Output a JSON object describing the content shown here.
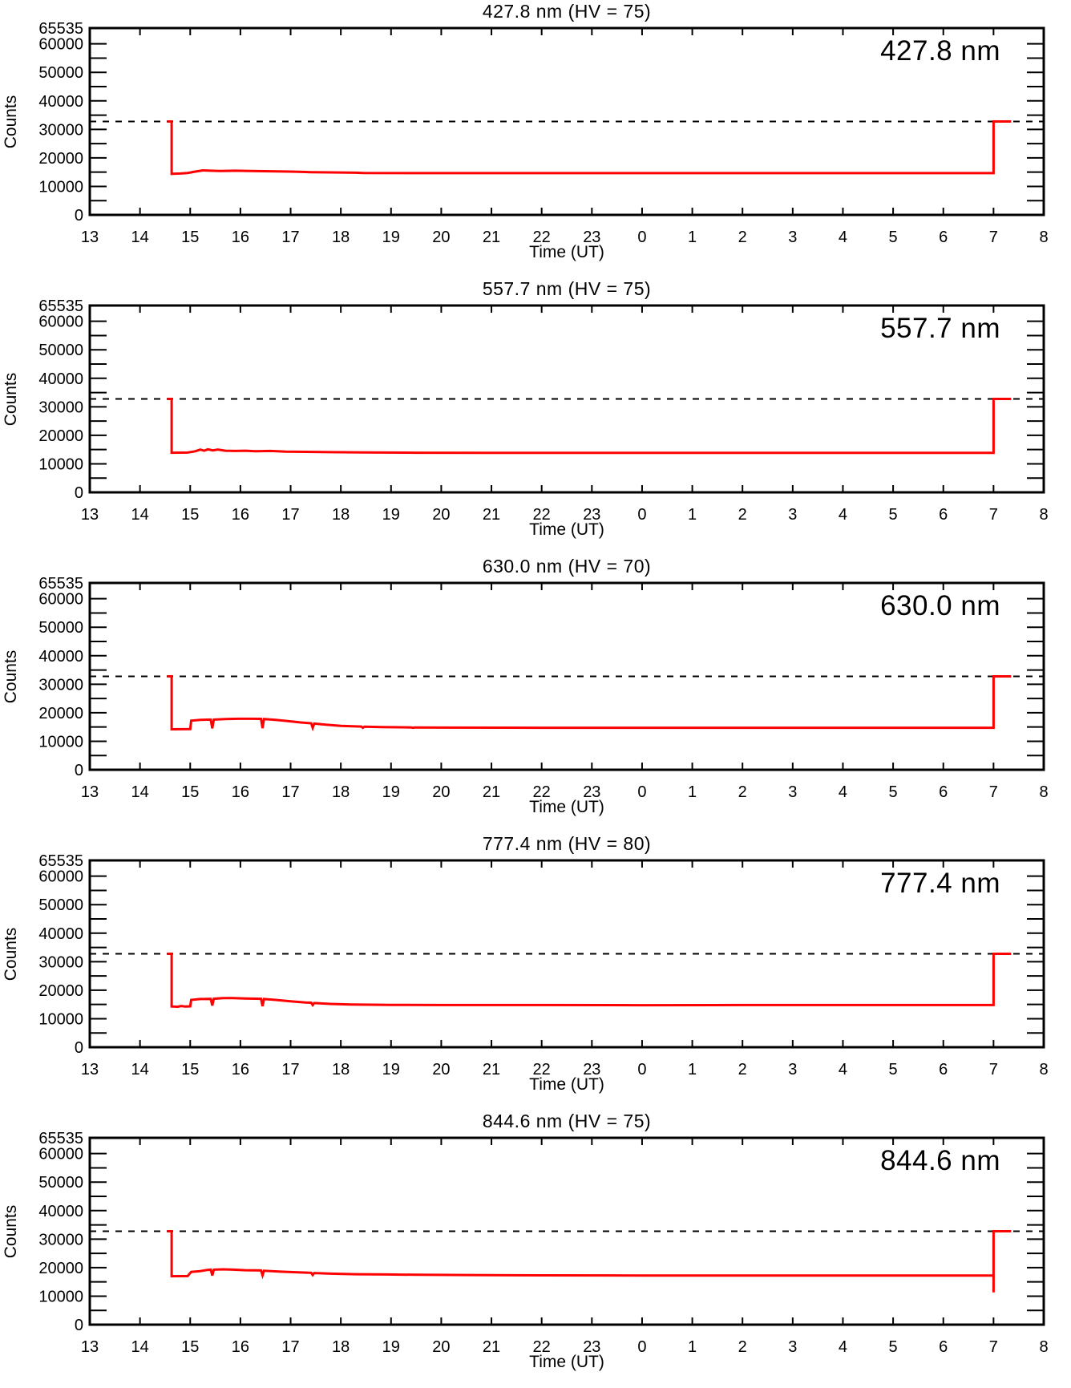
{
  "page_background": "#ffffff",
  "axis_color": "#000000",
  "chart_data": [
    {
      "type": "line",
      "title": "427.8 nm (HV = 75)",
      "big_label": "427.8 nm",
      "xlabel": "Time (UT)",
      "ylabel": "Counts",
      "line_color": "#ff0000",
      "dashed_reference_level": 32768,
      "ylim": [
        0,
        65535
      ],
      "ytick_values": [
        0,
        10000,
        20000,
        30000,
        40000,
        50000,
        60000,
        65535
      ],
      "ytick_labels": [
        "0",
        "10000",
        "20000",
        "30000",
        "40000",
        "50000",
        "60000",
        "65535"
      ],
      "y_minor_step": 5000,
      "xtick_labels": [
        "13",
        "14",
        "15",
        "16",
        "17",
        "18",
        "19",
        "20",
        "21",
        "22",
        "23",
        "0",
        "1",
        "2",
        "3",
        "4",
        "5",
        "6",
        "7",
        "8"
      ],
      "x_hours_span": 19,
      "grid": false,
      "points_hours_after_13UT_vs_counts": [
        [
          1.54,
          32768
        ],
        [
          1.63,
          32768
        ],
        [
          1.63,
          14400
        ],
        [
          1.8,
          14500
        ],
        [
          1.95,
          14700
        ],
        [
          2.1,
          15200
        ],
        [
          2.25,
          15600
        ],
        [
          2.4,
          15500
        ],
        [
          2.6,
          15400
        ],
        [
          2.9,
          15500
        ],
        [
          3.2,
          15400
        ],
        [
          3.6,
          15300
        ],
        [
          4.0,
          15200
        ],
        [
          4.4,
          15000
        ],
        [
          4.8,
          14900
        ],
        [
          5.3,
          14800
        ],
        [
          5.45,
          14700
        ],
        [
          6.5,
          14650
        ],
        [
          8,
          14650
        ],
        [
          10,
          14650
        ],
        [
          12,
          14650
        ],
        [
          14,
          14650
        ],
        [
          16,
          14650
        ],
        [
          18,
          14650
        ],
        [
          18,
          32768
        ],
        [
          18.35,
          32768
        ]
      ]
    },
    {
      "type": "line",
      "title": "557.7 nm (HV = 75)",
      "big_label": "557.7 nm",
      "xlabel": "Time (UT)",
      "ylabel": "Counts",
      "line_color": "#ff0000",
      "dashed_reference_level": 32768,
      "ylim": [
        0,
        65535
      ],
      "ytick_values": [
        0,
        10000,
        20000,
        30000,
        40000,
        50000,
        60000,
        65535
      ],
      "ytick_labels": [
        "0",
        "10000",
        "20000",
        "30000",
        "40000",
        "50000",
        "60000",
        "65535"
      ],
      "y_minor_step": 5000,
      "xtick_labels": [
        "13",
        "14",
        "15",
        "16",
        "17",
        "18",
        "19",
        "20",
        "21",
        "22",
        "23",
        "0",
        "1",
        "2",
        "3",
        "4",
        "5",
        "6",
        "7",
        "8"
      ],
      "x_hours_span": 19,
      "grid": false,
      "points_hours_after_13UT_vs_counts": [
        [
          1.54,
          32768
        ],
        [
          1.63,
          32768
        ],
        [
          1.63,
          13900
        ],
        [
          1.95,
          13950
        ],
        [
          2.1,
          14400
        ],
        [
          2.2,
          15000
        ],
        [
          2.28,
          14600
        ],
        [
          2.35,
          15100
        ],
        [
          2.45,
          14700
        ],
        [
          2.55,
          15000
        ],
        [
          2.7,
          14600
        ],
        [
          2.9,
          14500
        ],
        [
          3.1,
          14600
        ],
        [
          3.3,
          14400
        ],
        [
          3.6,
          14500
        ],
        [
          3.9,
          14300
        ],
        [
          4.3,
          14200
        ],
        [
          4.8,
          14100
        ],
        [
          5.5,
          14000
        ],
        [
          6.5,
          13900
        ],
        [
          8,
          13850
        ],
        [
          10,
          13850
        ],
        [
          12,
          13850
        ],
        [
          14,
          13850
        ],
        [
          16,
          13850
        ],
        [
          18,
          13850
        ],
        [
          18,
          32768
        ],
        [
          18.35,
          32768
        ]
      ]
    },
    {
      "type": "line",
      "title": "630.0 nm (HV = 70)",
      "big_label": "630.0 nm",
      "xlabel": "Time (UT)",
      "ylabel": "Counts",
      "line_color": "#ff0000",
      "dashed_reference_level": 32768,
      "ylim": [
        0,
        65535
      ],
      "ytick_values": [
        0,
        10000,
        20000,
        30000,
        40000,
        50000,
        60000,
        65535
      ],
      "ytick_labels": [
        "0",
        "10000",
        "20000",
        "30000",
        "40000",
        "50000",
        "60000",
        "65535"
      ],
      "y_minor_step": 5000,
      "xtick_labels": [
        "13",
        "14",
        "15",
        "16",
        "17",
        "18",
        "19",
        "20",
        "21",
        "22",
        "23",
        "0",
        "1",
        "2",
        "3",
        "4",
        "5",
        "6",
        "7",
        "8"
      ],
      "x_hours_span": 19,
      "grid": false,
      "points_hours_after_13UT_vs_counts": [
        [
          1.54,
          32768
        ],
        [
          1.63,
          32768
        ],
        [
          1.63,
          14200
        ],
        [
          2.0,
          14250
        ],
        [
          2.02,
          17200
        ],
        [
          2.2,
          17500
        ],
        [
          2.41,
          17600
        ],
        [
          2.44,
          14500
        ],
        [
          2.47,
          17600
        ],
        [
          2.7,
          17800
        ],
        [
          2.95,
          17900
        ],
        [
          3.2,
          17900
        ],
        [
          3.41,
          17850
        ],
        [
          3.44,
          14600
        ],
        [
          3.47,
          17800
        ],
        [
          3.7,
          17500
        ],
        [
          4.0,
          17000
        ],
        [
          4.2,
          16600
        ],
        [
          4.41,
          16300
        ],
        [
          4.44,
          14700
        ],
        [
          4.47,
          16200
        ],
        [
          4.7,
          15800
        ],
        [
          5.0,
          15400
        ],
        [
          5.41,
          15150
        ],
        [
          5.44,
          14750
        ],
        [
          5.47,
          15100
        ],
        [
          5.8,
          15000
        ],
        [
          6.2,
          14900
        ],
        [
          6.41,
          14850
        ],
        [
          6.44,
          14700
        ],
        [
          6.47,
          14850
        ],
        [
          7.0,
          14800
        ],
        [
          9,
          14750
        ],
        [
          11,
          14750
        ],
        [
          13,
          14750
        ],
        [
          15,
          14750
        ],
        [
          17,
          14750
        ],
        [
          18,
          14750
        ],
        [
          18,
          32768
        ],
        [
          18.35,
          32768
        ]
      ]
    },
    {
      "type": "line",
      "title": "777.4 nm (HV = 80)",
      "big_label": "777.4 nm",
      "xlabel": "Time (UT)",
      "ylabel": "Counts",
      "line_color": "#ff0000",
      "dashed_reference_level": 32768,
      "ylim": [
        0,
        65535
      ],
      "ytick_values": [
        0,
        10000,
        20000,
        30000,
        40000,
        50000,
        60000,
        65535
      ],
      "ytick_labels": [
        "0",
        "10000",
        "20000",
        "30000",
        "40000",
        "50000",
        "60000",
        "65535"
      ],
      "y_minor_step": 5000,
      "xtick_labels": [
        "13",
        "14",
        "15",
        "16",
        "17",
        "18",
        "19",
        "20",
        "21",
        "22",
        "23",
        "0",
        "1",
        "2",
        "3",
        "4",
        "5",
        "6",
        "7",
        "8"
      ],
      "x_hours_span": 19,
      "grid": false,
      "points_hours_after_13UT_vs_counts": [
        [
          1.54,
          32768
        ],
        [
          1.63,
          32768
        ],
        [
          1.63,
          14300
        ],
        [
          1.75,
          14200
        ],
        [
          1.82,
          14450
        ],
        [
          1.9,
          14300
        ],
        [
          2.0,
          14350
        ],
        [
          2.02,
          16600
        ],
        [
          2.2,
          16900
        ],
        [
          2.41,
          16950
        ],
        [
          2.44,
          14600
        ],
        [
          2.47,
          17000
        ],
        [
          2.65,
          17200
        ],
        [
          2.85,
          17200
        ],
        [
          3.1,
          17100
        ],
        [
          3.41,
          17000
        ],
        [
          3.44,
          14400
        ],
        [
          3.47,
          16900
        ],
        [
          3.7,
          16600
        ],
        [
          4.0,
          16100
        ],
        [
          4.3,
          15700
        ],
        [
          4.41,
          15600
        ],
        [
          4.44,
          14800
        ],
        [
          4.47,
          15500
        ],
        [
          4.8,
          15200
        ],
        [
          5.2,
          15000
        ],
        [
          5.6,
          14900
        ],
        [
          6.0,
          14850
        ],
        [
          7,
          14800
        ],
        [
          9,
          14800
        ],
        [
          11,
          14750
        ],
        [
          13,
          14800
        ],
        [
          15,
          14800
        ],
        [
          17,
          14800
        ],
        [
          18,
          14800
        ],
        [
          18,
          32768
        ],
        [
          18.35,
          32768
        ]
      ]
    },
    {
      "type": "line",
      "title": "844.6 nm (HV = 75)",
      "big_label": "844.6 nm",
      "xlabel": "Time (UT)",
      "ylabel": "Counts",
      "line_color": "#ff0000",
      "dashed_reference_level": 32768,
      "ylim": [
        0,
        65535
      ],
      "ytick_values": [
        0,
        10000,
        20000,
        30000,
        40000,
        50000,
        60000,
        65535
      ],
      "ytick_labels": [
        "0",
        "10000",
        "20000",
        "30000",
        "40000",
        "50000",
        "60000",
        "65535"
      ],
      "y_minor_step": 5000,
      "xtick_labels": [
        "13",
        "14",
        "15",
        "16",
        "17",
        "18",
        "19",
        "20",
        "21",
        "22",
        "23",
        "0",
        "1",
        "2",
        "3",
        "4",
        "5",
        "6",
        "7",
        "8"
      ],
      "x_hours_span": 19,
      "grid": false,
      "points_hours_after_13UT_vs_counts": [
        [
          1.54,
          32768
        ],
        [
          1.63,
          32768
        ],
        [
          1.63,
          17000
        ],
        [
          1.95,
          17050
        ],
        [
          2.02,
          18500
        ],
        [
          2.2,
          18800
        ],
        [
          2.35,
          19200
        ],
        [
          2.41,
          19300
        ],
        [
          2.44,
          17200
        ],
        [
          2.47,
          19300
        ],
        [
          2.65,
          19400
        ],
        [
          2.85,
          19300
        ],
        [
          3.1,
          19100
        ],
        [
          3.41,
          19000
        ],
        [
          3.44,
          17300
        ],
        [
          3.47,
          18900
        ],
        [
          3.8,
          18600
        ],
        [
          4.2,
          18300
        ],
        [
          4.41,
          18200
        ],
        [
          4.44,
          17400
        ],
        [
          4.47,
          18100
        ],
        [
          4.8,
          17900
        ],
        [
          5.3,
          17700
        ],
        [
          5.9,
          17600
        ],
        [
          6.5,
          17500
        ],
        [
          7.5,
          17400
        ],
        [
          9,
          17300
        ],
        [
          11,
          17250
        ],
        [
          13,
          17250
        ],
        [
          15,
          17250
        ],
        [
          17,
          17250
        ],
        [
          18,
          17250
        ],
        [
          18,
          11300
        ],
        [
          18,
          32768
        ],
        [
          18.35,
          32768
        ]
      ]
    }
  ]
}
